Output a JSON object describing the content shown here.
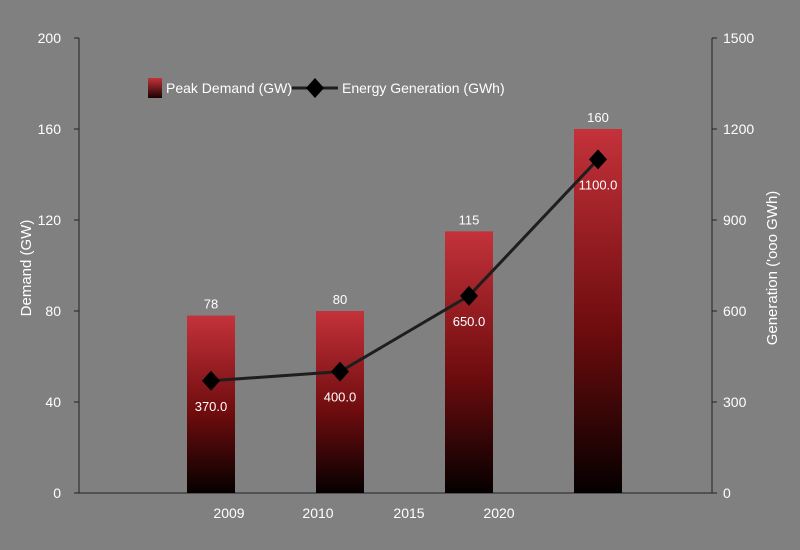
{
  "chart_data": {
    "type": "bar",
    "categories": [
      "2009",
      "2010",
      "2015",
      "2020"
    ],
    "ylabel_left": "Demand (GW)",
    "ylabel_right": "Generation ('ooo GWh)",
    "ylim_left": [
      0,
      200
    ],
    "ylim_right": [
      0,
      1500
    ],
    "yticks_left": [
      "0",
      "40",
      "80",
      "120",
      "160",
      "200"
    ],
    "yticks_right": [
      "0",
      "300",
      "600",
      "900",
      "1200",
      "1500"
    ],
    "legend_position": "top-left",
    "grid": false,
    "series": [
      {
        "name": "Peak Demand (GW)",
        "type": "bar",
        "axis": "left",
        "values": [
          78,
          80,
          115,
          160
        ],
        "labels": [
          "78",
          "80",
          "115",
          "160"
        ]
      },
      {
        "name": "Energy Generation (GWh)",
        "type": "line",
        "axis": "right",
        "values": [
          370,
          400,
          650,
          1100
        ],
        "labels": [
          "370.0",
          "400.0",
          "650.0",
          "1100.0"
        ]
      }
    ],
    "colors": {
      "background": "#808080",
      "bar_top": "#c4323a",
      "bar_bottom": "#050000",
      "line": "#1e1e1e",
      "text": "#ffffff"
    }
  }
}
